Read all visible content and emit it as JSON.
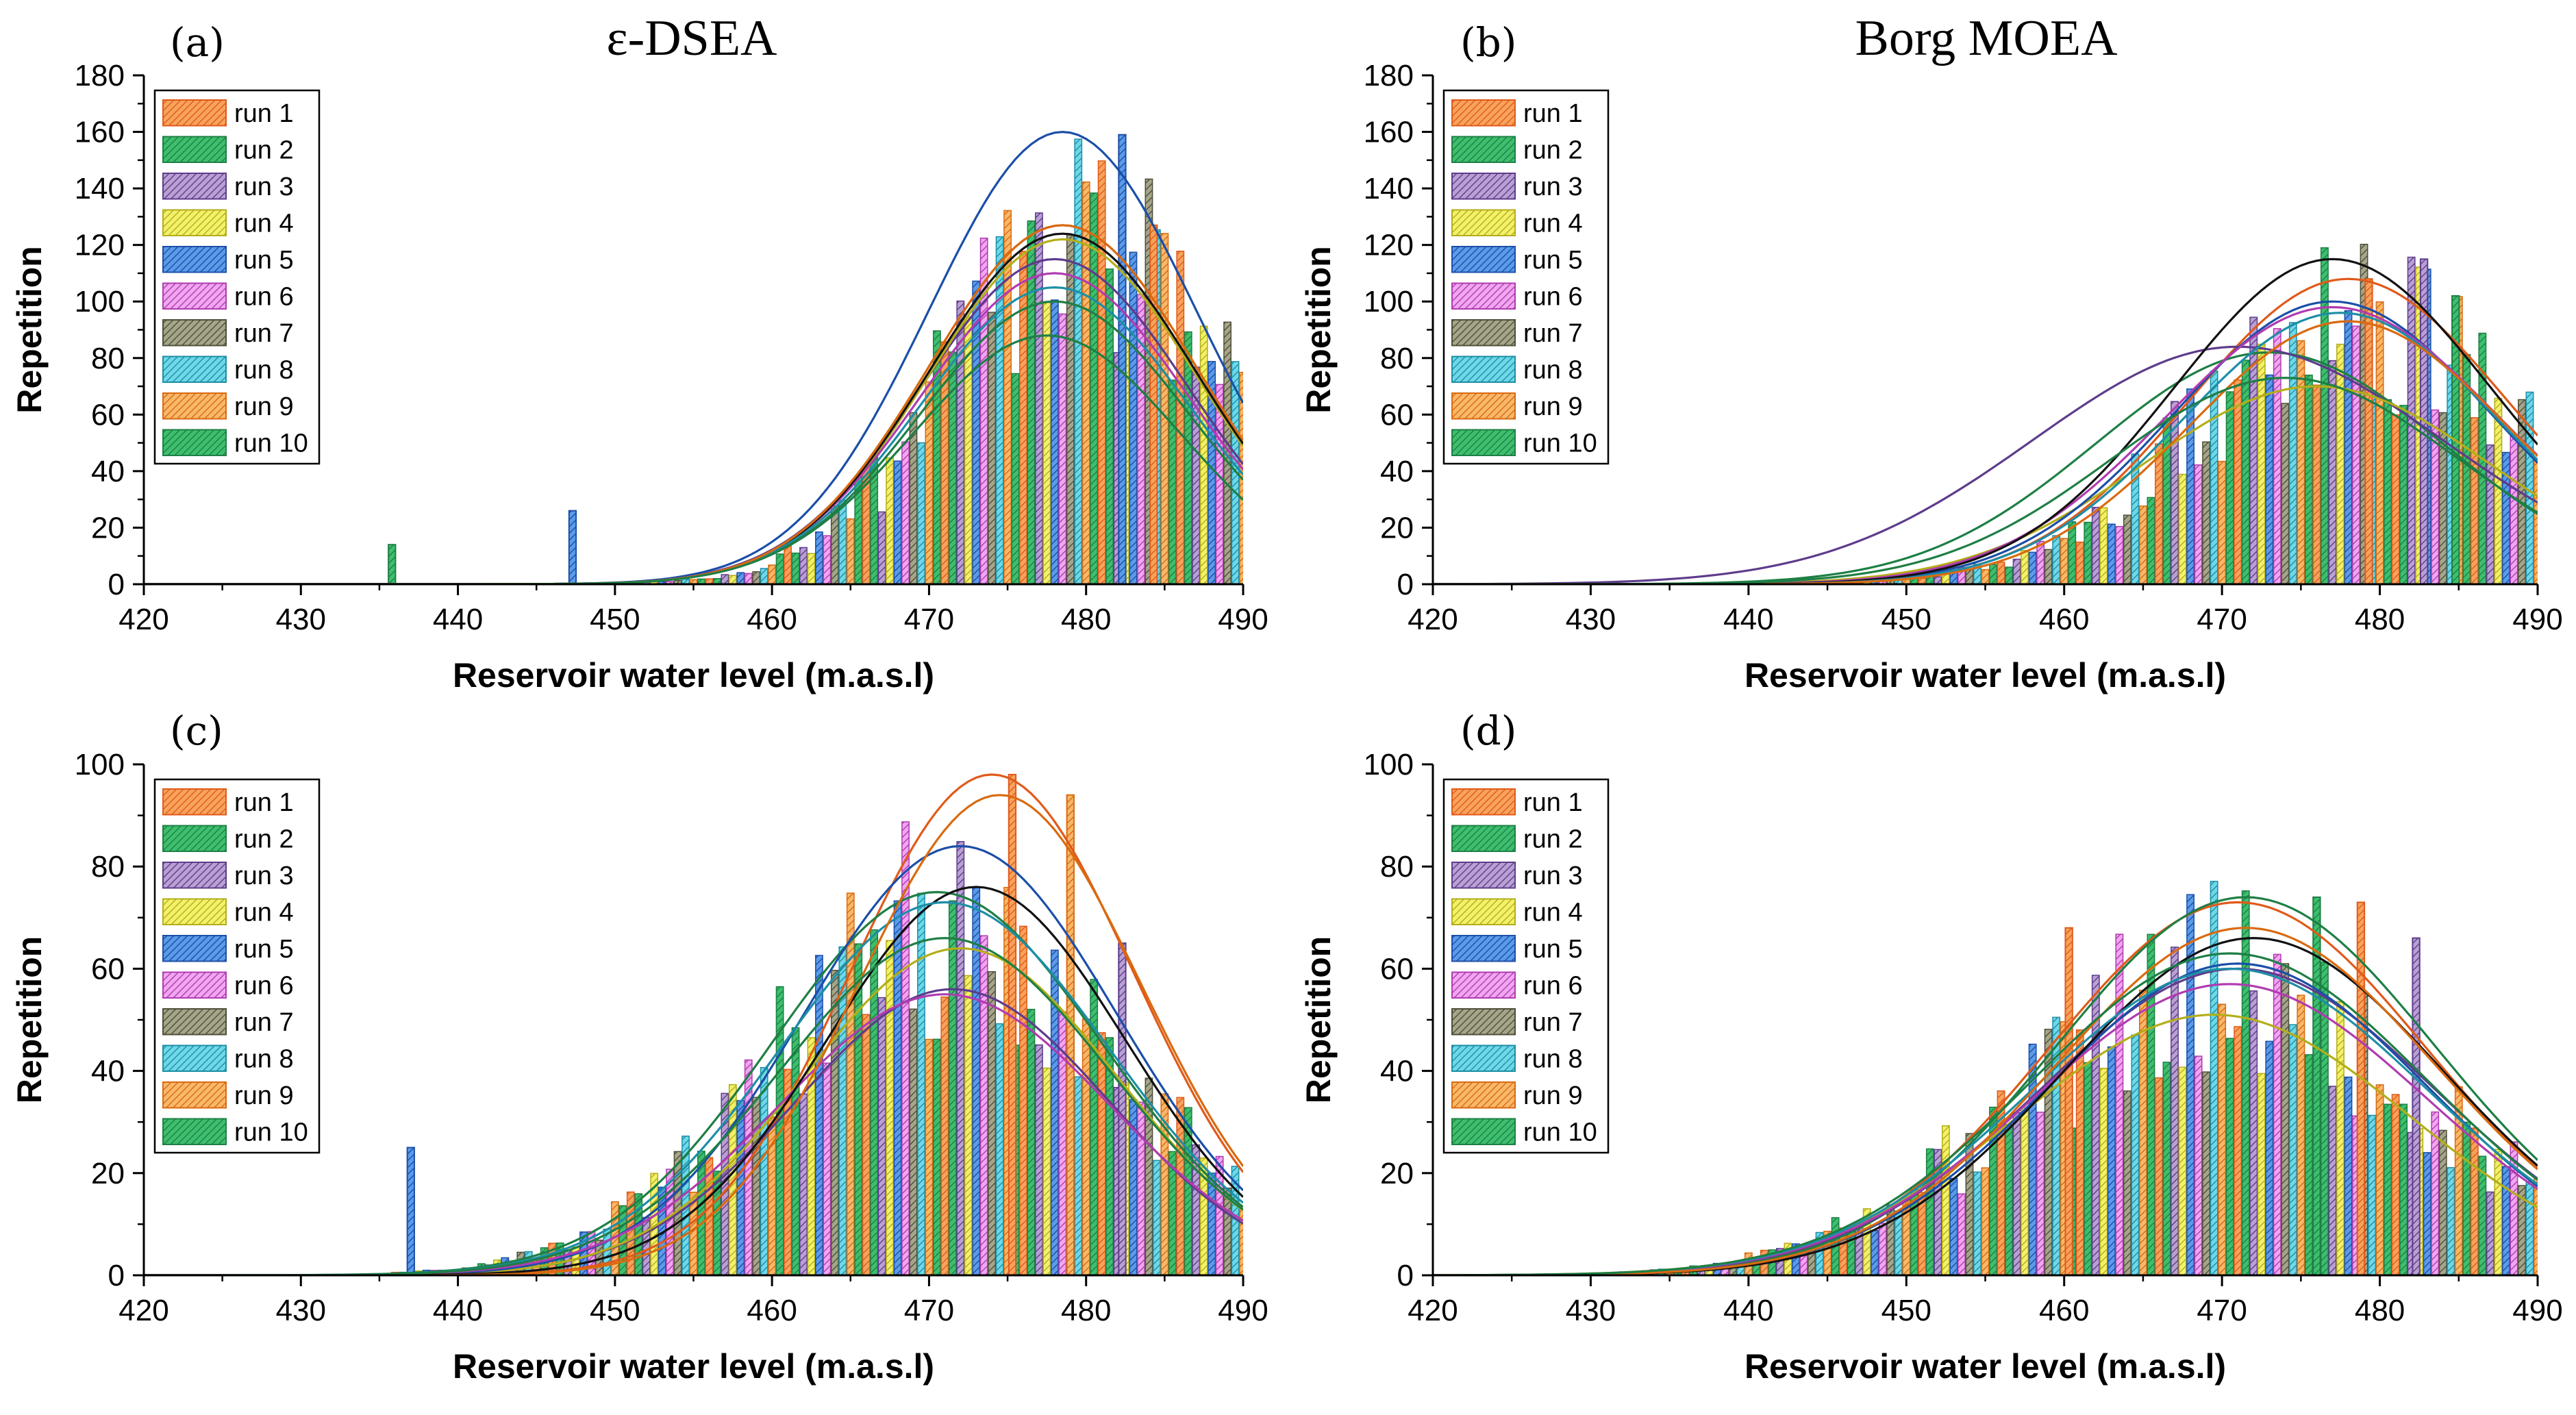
{
  "figure": {
    "column_titles": [
      "ε-DSEA",
      "Borg MOEA"
    ]
  },
  "series_styles": [
    {
      "name": "run 1",
      "fill": "#F7A35C",
      "stroke": "#E05A1A"
    },
    {
      "name": "run 2",
      "fill": "#3DBF6E",
      "stroke": "#1E7F45"
    },
    {
      "name": "run 3",
      "fill": "#B9A0D2",
      "stroke": "#5E3C8C"
    },
    {
      "name": "run 4",
      "fill": "#F3F06A",
      "stroke": "#B3AE1A"
    },
    {
      "name": "run 5",
      "fill": "#5B9BE8",
      "stroke": "#1B4FA8"
    },
    {
      "name": "run 6",
      "fill": "#F0A6F0",
      "stroke": "#B03CB0"
    },
    {
      "name": "run 7",
      "fill": "#A5A58A",
      "stroke": "#4F4F3A"
    },
    {
      "name": "run 8",
      "fill": "#6FD8E8",
      "stroke": "#1D8EA6"
    },
    {
      "name": "run 9",
      "fill": "#F8B86A",
      "stroke": "#D96A10"
    },
    {
      "name": "run 10",
      "fill": "#3DBF6E",
      "stroke": "#1E7F45"
    }
  ],
  "chart_data": [
    {
      "type": "bar",
      "panel": "(a)",
      "title": "ε-DSEA",
      "xlabel": "Reservoir water level (m.a.s.l)",
      "ylabel": "Repetition",
      "xlim": [
        420,
        490
      ],
      "ylim": [
        0,
        180
      ],
      "xticks": [
        420,
        430,
        440,
        450,
        460,
        470,
        480,
        490
      ],
      "yticks": [
        0,
        20,
        40,
        60,
        80,
        100,
        120,
        140,
        160,
        180
      ],
      "legend": [
        "run 1",
        "run 2",
        "run 3",
        "run 4",
        "run 5",
        "run 6",
        "run 7",
        "run 8",
        "run 9",
        "run 10"
      ],
      "legend_position": "top-left",
      "fit_curves": [
        {
          "name": "run 1",
          "mean": 478.5,
          "sd": 8.5,
          "peak": 127
        },
        {
          "name": "run 2",
          "mean": 477.5,
          "sd": 8.5,
          "peak": 88
        },
        {
          "name": "run 3",
          "mean": 478.0,
          "sd": 8.5,
          "peak": 115
        },
        {
          "name": "run 4",
          "mean": 478.5,
          "sd": 8.5,
          "peak": 122
        },
        {
          "name": "run 5",
          "mean": 478.5,
          "sd": 8.5,
          "peak": 160
        },
        {
          "name": "run 6",
          "mean": 478.0,
          "sd": 8.5,
          "peak": 110
        },
        {
          "name": "run 7",
          "mean": 478.5,
          "sd": 8.5,
          "peak": 124
        },
        {
          "name": "run 8",
          "mean": 478.0,
          "sd": 8.5,
          "peak": 105
        },
        {
          "name": "run 9",
          "mean": 478.5,
          "sd": 8.5,
          "peak": 127
        },
        {
          "name": "run 10",
          "mean": 478.0,
          "sd": 8.5,
          "peak": 100
        }
      ],
      "bar_envelope": {
        "mean": 480,
        "sd": 8.5,
        "peak": 125
      },
      "highlight_bars": [
        {
          "x": 482.3,
          "series": 5,
          "value": 159
        },
        {
          "x": 484.3,
          "series": 1,
          "value": 127
        },
        {
          "x": 447.3,
          "series": 5,
          "value": 26
        },
        {
          "x": 435.8,
          "series": 2,
          "value": 14
        }
      ]
    },
    {
      "type": "bar",
      "panel": "(b)",
      "title": "Borg MOEA",
      "xlabel": "Reservoir water level (m.a.s.l)",
      "ylabel": "Repetition",
      "xlim": [
        420,
        490
      ],
      "ylim": [
        0,
        180
      ],
      "xticks": [
        420,
        430,
        440,
        450,
        460,
        470,
        480,
        490
      ],
      "yticks": [
        0,
        20,
        40,
        60,
        80,
        100,
        120,
        140,
        160,
        180
      ],
      "legend": [
        "run 1",
        "run 2",
        "run 3",
        "run 4",
        "run 5",
        "run 6",
        "run 7",
        "run 8",
        "run 9",
        "run 10"
      ],
      "legend_position": "top-left",
      "fit_curves": [
        {
          "name": "run 1",
          "mean": 478.0,
          "sd": 10.0,
          "peak": 108
        },
        {
          "name": "run 2",
          "mean": 473.0,
          "sd": 11.0,
          "peak": 82
        },
        {
          "name": "run 3",
          "mean": 471.0,
          "sd": 13.0,
          "peak": 84
        },
        {
          "name": "run 4",
          "mean": 476.0,
          "sd": 11.0,
          "peak": 70
        },
        {
          "name": "run 5",
          "mean": 477.0,
          "sd": 10.0,
          "peak": 100
        },
        {
          "name": "run 6",
          "mean": 477.0,
          "sd": 10.5,
          "peak": 98
        },
        {
          "name": "run 7",
          "mean": 477.0,
          "sd": 10.0,
          "peak": 115
        },
        {
          "name": "run 8",
          "mean": 477.5,
          "sd": 10.0,
          "peak": 96
        },
        {
          "name": "run 9",
          "mean": 478.0,
          "sd": 10.0,
          "peak": 93
        },
        {
          "name": "run 10",
          "mean": 474.0,
          "sd": 11.0,
          "peak": 73
        }
      ],
      "bar_envelope": {
        "mean": 479,
        "sd": 10.5,
        "peak": 92
      },
      "highlight_bars": [
        {
          "x": 482.8,
          "series": 3,
          "value": 115
        },
        {
          "x": 484.8,
          "series": 2,
          "value": 102
        },
        {
          "x": 479.3,
          "series": 1,
          "value": 108
        }
      ]
    },
    {
      "type": "bar",
      "panel": "(c)",
      "title": "",
      "xlabel": "Reservoir water level (m.a.s.l)",
      "ylabel": "Repetition",
      "xlim": [
        420,
        490
      ],
      "ylim": [
        0,
        100
      ],
      "xticks": [
        420,
        430,
        440,
        450,
        460,
        470,
        480,
        490
      ],
      "yticks": [
        0,
        20,
        40,
        60,
        80,
        100
      ],
      "legend": [
        "run 1",
        "run 2",
        "run 3",
        "run 4",
        "run 5",
        "run 6",
        "run 7",
        "run 8",
        "run 9",
        "run 10"
      ],
      "legend_position": "top-left",
      "fit_curves": [
        {
          "name": "run 1",
          "mean": 474.0,
          "sd": 9.0,
          "peak": 98
        },
        {
          "name": "run 2",
          "mean": 470.5,
          "sd": 10.5,
          "peak": 75
        },
        {
          "name": "run 3",
          "mean": 471.5,
          "sd": 10.0,
          "peak": 56
        },
        {
          "name": "run 4",
          "mean": 472.0,
          "sd": 10.0,
          "peak": 64
        },
        {
          "name": "run 5",
          "mean": 472.0,
          "sd": 10.0,
          "peak": 84
        },
        {
          "name": "run 6",
          "mean": 471.0,
          "sd": 10.5,
          "peak": 55
        },
        {
          "name": "run 7",
          "mean": 473.0,
          "sd": 9.5,
          "peak": 76
        },
        {
          "name": "run 8",
          "mean": 471.0,
          "sd": 10.5,
          "peak": 73
        },
        {
          "name": "run 9",
          "mean": 474.5,
          "sd": 9.0,
          "peak": 94
        },
        {
          "name": "run 10",
          "mean": 471.0,
          "sd": 10.5,
          "peak": 66
        }
      ],
      "bar_envelope": {
        "mean": 471,
        "sd": 11,
        "peak": 68
      },
      "highlight_bars": [
        {
          "x": 475.3,
          "series": 1,
          "value": 98
        },
        {
          "x": 479.0,
          "series": 9,
          "value": 94
        },
        {
          "x": 482.3,
          "series": 3,
          "value": 65
        },
        {
          "x": 437.0,
          "series": 5,
          "value": 25
        }
      ]
    },
    {
      "type": "bar",
      "panel": "(d)",
      "title": "",
      "xlabel": "Reservoir water level (m.a.s.l)",
      "ylabel": "Repetition",
      "xlim": [
        420,
        490
      ],
      "ylim": [
        0,
        100
      ],
      "xticks": [
        420,
        430,
        440,
        450,
        460,
        470,
        480,
        490
      ],
      "yticks": [
        0,
        20,
        40,
        60,
        80,
        100
      ],
      "legend": [
        "run 1",
        "run 2",
        "run 3",
        "run 4",
        "run 5",
        "run 6",
        "run 7",
        "run 8",
        "run 9",
        "run 10"
      ],
      "legend_position": "top-left",
      "fit_curves": [
        {
          "name": "run 1",
          "mean": 471.0,
          "sd": 12.0,
          "peak": 73
        },
        {
          "name": "run 2",
          "mean": 471.5,
          "sd": 12.0,
          "peak": 74
        },
        {
          "name": "run 3",
          "mean": 471.0,
          "sd": 12.5,
          "peak": 60
        },
        {
          "name": "run 4",
          "mean": 469.5,
          "sd": 12.5,
          "peak": 51
        },
        {
          "name": "run 5",
          "mean": 471.0,
          "sd": 12.0,
          "peak": 61
        },
        {
          "name": "run 6",
          "mean": 470.5,
          "sd": 12.5,
          "peak": 57
        },
        {
          "name": "run 7",
          "mean": 472.0,
          "sd": 12.0,
          "peak": 66
        },
        {
          "name": "run 8",
          "mean": 470.5,
          "sd": 12.5,
          "peak": 60
        },
        {
          "name": "run 9",
          "mean": 471.5,
          "sd": 12.0,
          "peak": 68
        },
        {
          "name": "run 10",
          "mean": 470.5,
          "sd": 12.5,
          "peak": 63
        }
      ],
      "bar_envelope": {
        "mean": 470,
        "sd": 12.5,
        "peak": 58
      },
      "highlight_bars": [
        {
          "x": 476.0,
          "series": 2,
          "value": 74
        },
        {
          "x": 478.8,
          "series": 1,
          "value": 73
        },
        {
          "x": 482.3,
          "series": 3,
          "value": 66
        },
        {
          "x": 460.3,
          "series": 1,
          "value": 68
        }
      ]
    }
  ]
}
